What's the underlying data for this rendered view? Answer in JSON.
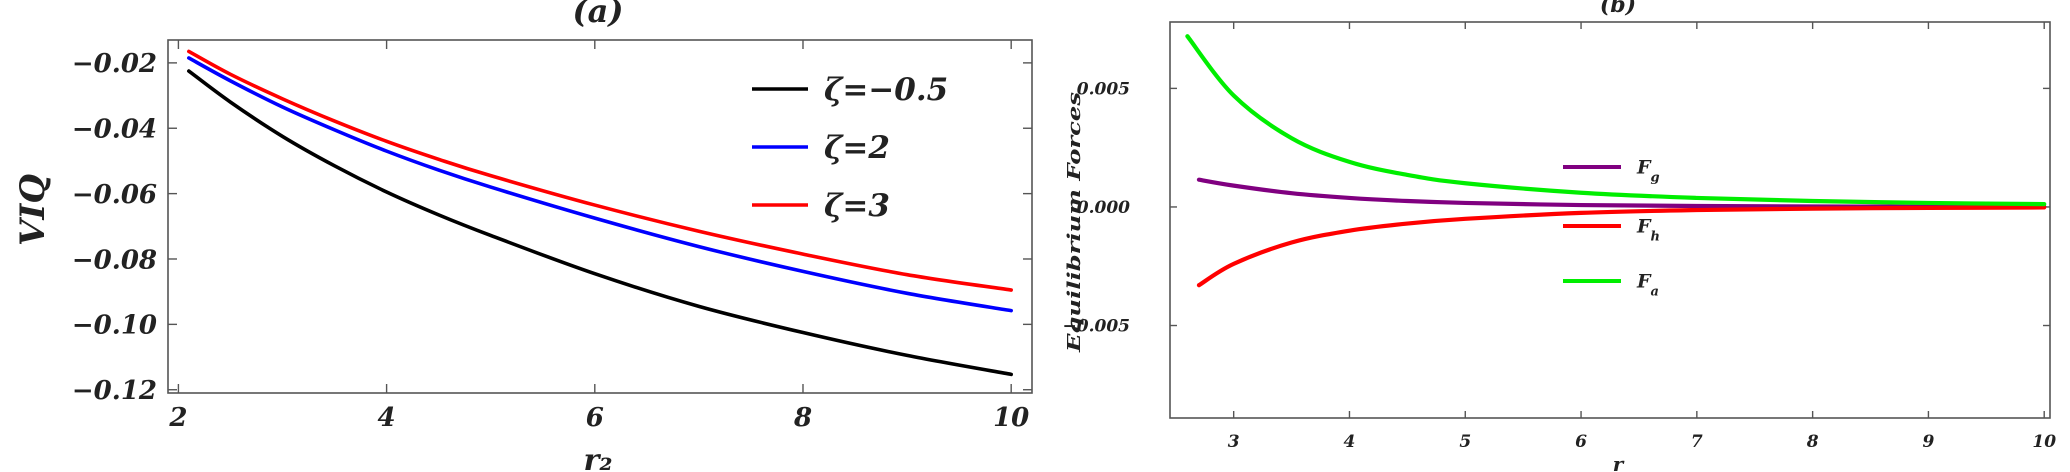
{
  "chart_data": [
    {
      "type": "line",
      "title": "(a)",
      "xlabel": "r₂",
      "ylabel": "VIQ",
      "xlim": [
        1.9,
        10.2
      ],
      "ylim": [
        -0.121,
        -0.013
      ],
      "x_ticks": [
        2,
        4,
        6,
        8,
        10
      ],
      "x_tick_labels": [
        "2",
        "4",
        "6",
        "8",
        "10"
      ],
      "y_ticks": [
        -0.02,
        -0.04,
        -0.06,
        -0.08,
        -0.1,
        -0.12
      ],
      "y_tick_labels": [
        "−0.02",
        "−0.04",
        "−0.06",
        "−0.08",
        "−0.10",
        "−0.12"
      ],
      "grid": false,
      "legend_position": "top-right",
      "series": [
        {
          "name": "ζ=−0.5",
          "color": "#000000",
          "x": [
            2.1,
            2.5,
            3,
            3.5,
            4,
            4.5,
            5,
            6,
            7,
            8,
            9,
            10
          ],
          "y": [
            -0.0225,
            -0.032,
            -0.0425,
            -0.0515,
            -0.0595,
            -0.0665,
            -0.0728,
            -0.0845,
            -0.0945,
            -0.1025,
            -0.1095,
            -0.1153
          ]
        },
        {
          "name": "ζ=2",
          "color": "#0000ff",
          "x": [
            2.1,
            2.5,
            3,
            3.5,
            4,
            4.5,
            5,
            6,
            7,
            8,
            9,
            10
          ],
          "y": [
            -0.0185,
            -0.0255,
            -0.0335,
            -0.0405,
            -0.047,
            -0.0528,
            -0.058,
            -0.0675,
            -0.0762,
            -0.0838,
            -0.0905,
            -0.0958
          ]
        },
        {
          "name": "ζ=3",
          "color": "#ff0000",
          "x": [
            2.1,
            2.5,
            3,
            3.5,
            4,
            4.5,
            5,
            6,
            7,
            8,
            9,
            10
          ],
          "y": [
            -0.0165,
            -0.0235,
            -0.031,
            -0.0378,
            -0.044,
            -0.0495,
            -0.0545,
            -0.0635,
            -0.0715,
            -0.0785,
            -0.0848,
            -0.0895
          ]
        }
      ]
    },
    {
      "type": "line",
      "title": "(b)",
      "xlabel": "r",
      "ylabel": "Equilibrium Forces",
      "xlim": [
        2.45,
        10.05
      ],
      "ylim": [
        -0.0089,
        0.0078
      ],
      "x_ticks": [
        3,
        4,
        5,
        6,
        7,
        8,
        9,
        10
      ],
      "x_tick_labels": [
        "3",
        "4",
        "5",
        "6",
        "7",
        "8",
        "9",
        "10"
      ],
      "y_ticks": [
        0.005,
        0.0,
        -0.005
      ],
      "y_tick_labels": [
        "0.005",
        "0.000",
        "−0.005"
      ],
      "grid": false,
      "legend_position": "center",
      "series": [
        {
          "name": "F",
          "subscript": "g",
          "color": "#800080",
          "x": [
            2.7,
            3,
            3.5,
            4,
            4.5,
            5,
            6,
            7,
            8,
            9,
            10
          ],
          "y": [
            0.00115,
            0.0009,
            0.00058,
            0.00038,
            0.00025,
            0.00017,
            8e-05,
            4e-05,
            2e-05,
            1e-05,
            1e-05
          ]
        },
        {
          "name": "F",
          "subscript": "h",
          "color": "#ff0000",
          "x": [
            2.7,
            3,
            3.5,
            4,
            4.5,
            5,
            6,
            7,
            8,
            9,
            10
          ],
          "y": [
            -0.0033,
            -0.0024,
            -0.0015,
            -0.001,
            -0.0007,
            -0.0005,
            -0.00025,
            -0.00013,
            -7e-05,
            -4e-05,
            -2e-05
          ]
        },
        {
          "name": "F",
          "subscript": "a",
          "color": "#00ee00",
          "x": [
            2.6,
            3,
            3.5,
            4,
            4.5,
            5,
            6,
            7,
            8,
            9,
            10
          ],
          "y": [
            0.0072,
            0.0047,
            0.0029,
            0.0019,
            0.00135,
            0.001,
            0.0006,
            0.00038,
            0.00025,
            0.00017,
            0.00012
          ]
        }
      ]
    }
  ]
}
